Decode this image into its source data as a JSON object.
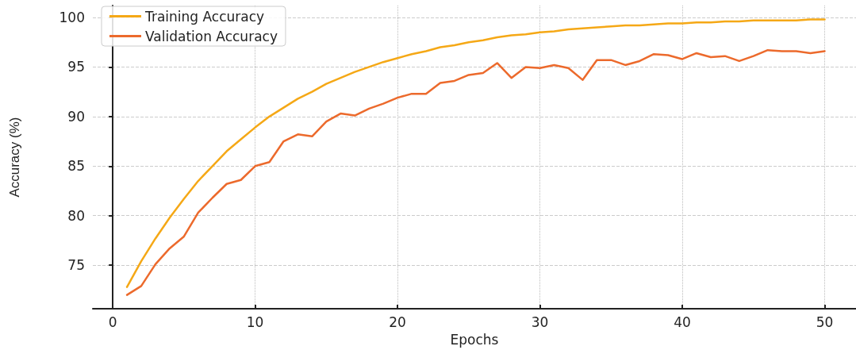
{
  "chart_data": {
    "type": "line",
    "xlabel": "Epochs",
    "ylabel": "Accuracy (%)",
    "x": [
      1,
      2,
      3,
      4,
      5,
      6,
      7,
      8,
      9,
      10,
      11,
      12,
      13,
      14,
      15,
      16,
      17,
      18,
      19,
      20,
      21,
      22,
      23,
      24,
      25,
      26,
      27,
      28,
      29,
      30,
      31,
      32,
      33,
      34,
      35,
      36,
      37,
      38,
      39,
      40,
      41,
      42,
      43,
      44,
      45,
      46,
      47,
      48,
      49,
      50
    ],
    "series": [
      {
        "name": "Training Accuracy",
        "color": "#f5a816",
        "values": [
          72.8,
          75.4,
          77.7,
          79.8,
          81.7,
          83.5,
          85.0,
          86.5,
          87.7,
          88.9,
          90.0,
          90.9,
          91.8,
          92.5,
          93.3,
          93.9,
          94.5,
          95.0,
          95.5,
          95.9,
          96.3,
          96.6,
          97.0,
          97.2,
          97.5,
          97.7,
          98.0,
          98.2,
          98.3,
          98.5,
          98.6,
          98.8,
          98.9,
          99.0,
          99.1,
          99.2,
          99.2,
          99.3,
          99.4,
          99.4,
          99.5,
          99.5,
          99.6,
          99.6,
          99.7,
          99.7,
          99.7,
          99.7,
          99.8,
          99.8
        ]
      },
      {
        "name": "Validation Accuracy",
        "color": "#ec6a2c",
        "values": [
          72.0,
          72.9,
          75.1,
          76.7,
          77.9,
          80.3,
          81.8,
          83.2,
          83.6,
          85.0,
          85.4,
          87.5,
          88.2,
          88.0,
          89.5,
          90.3,
          90.1,
          90.8,
          91.3,
          91.9,
          92.3,
          92.3,
          93.4,
          93.6,
          94.2,
          94.4,
          95.4,
          93.9,
          95.0,
          94.9,
          95.2,
          94.9,
          93.7,
          95.7,
          95.7,
          95.2,
          95.6,
          96.3,
          96.2,
          95.8,
          96.4,
          96.0,
          96.1,
          95.6,
          96.1,
          96.7,
          96.6,
          96.6,
          96.4,
          96.6
        ]
      }
    ],
    "xlim": [
      -1.4,
      52.2
    ],
    "xticks": [
      0,
      10,
      20,
      30,
      40,
      50
    ],
    "ylim": [
      70.6,
      101.2
    ],
    "yticks": [
      75,
      80,
      85,
      90,
      95,
      100
    ],
    "grid": true,
    "legend": "top left",
    "marker": "none",
    "line_style": "solid"
  }
}
